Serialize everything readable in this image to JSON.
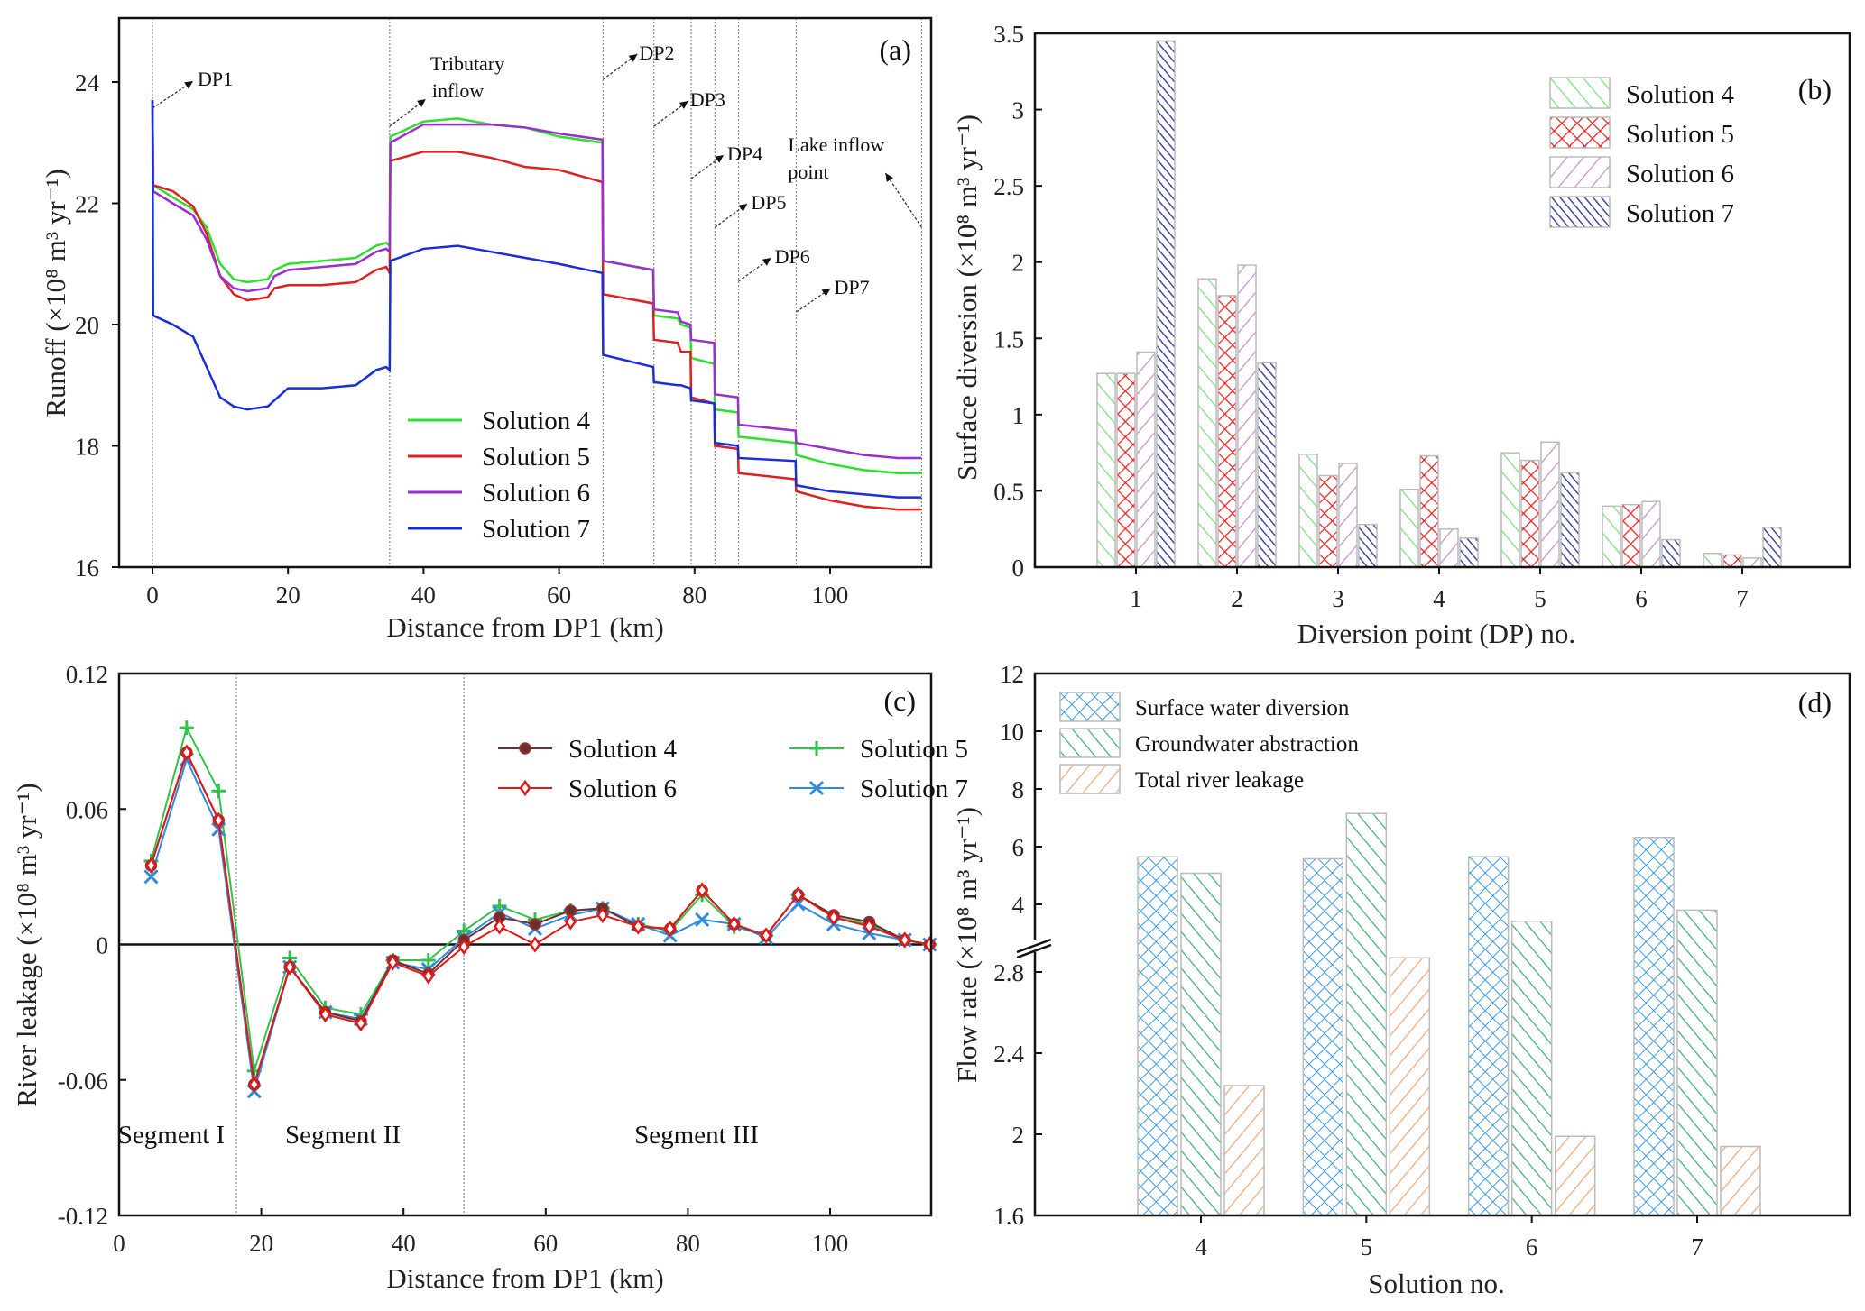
{
  "chart_data": [
    {
      "panel": "(a)",
      "type": "line",
      "title": "",
      "xlabel": "Distance from DP1 (km)",
      "ylabel": "Runoff (×10⁸ m³ yr⁻¹)",
      "xlim": [
        -5,
        114
      ],
      "ylim": [
        16,
        25
      ],
      "xticks": [
        0,
        20,
        40,
        60,
        80,
        100
      ],
      "yticks": [
        16,
        18,
        20,
        22,
        24
      ],
      "legend_position": "bottom-center",
      "annotations": [
        {
          "text": "DP1",
          "x": 0
        },
        {
          "text": "Tributary inflow",
          "x": 35
        },
        {
          "text": "DP2",
          "x": 66.5
        },
        {
          "text": "DP3",
          "x": 74
        },
        {
          "text": "DP4",
          "x": 79.5
        },
        {
          "text": "DP5",
          "x": 83
        },
        {
          "text": "DP6",
          "x": 86.5
        },
        {
          "text": "DP7",
          "x": 95
        },
        {
          "text": "Lake inflow point",
          "x": 113.5
        }
      ],
      "vlines": [
        0,
        35,
        66.5,
        74,
        79.5,
        83,
        86.5,
        95,
        113.5
      ],
      "series": [
        {
          "name": "Solution 4",
          "color": "#2ee02e",
          "x": [
            0,
            0.1,
            3,
            6,
            8,
            10,
            12,
            14,
            17,
            18,
            20,
            25,
            30,
            33,
            34.5,
            35,
            35.1,
            40,
            45,
            50,
            55,
            60,
            66.4,
            66.5,
            73.9,
            74,
            77.5,
            78,
            79.4,
            79.5,
            82.9,
            83,
            86.4,
            86.5,
            94.9,
            95,
            100,
            105,
            110,
            113.5
          ],
          "y": [
            23.7,
            22.3,
            22.1,
            21.9,
            21.6,
            21.0,
            20.75,
            20.7,
            20.75,
            20.9,
            21.0,
            21.05,
            21.1,
            21.3,
            21.35,
            21.3,
            23.1,
            23.35,
            23.4,
            23.3,
            23.25,
            23.1,
            23.0,
            21.05,
            20.9,
            20.15,
            20.1,
            20.0,
            19.95,
            19.45,
            19.35,
            18.6,
            18.55,
            18.15,
            18.05,
            17.85,
            17.7,
            17.6,
            17.55,
            17.55
          ]
        },
        {
          "name": "Solution 5",
          "color": "#e02020",
          "x": [
            0,
            0.1,
            3,
            6,
            8,
            10,
            12,
            14,
            17,
            18,
            20,
            25,
            30,
            33,
            34.5,
            35,
            35.1,
            40,
            45,
            50,
            55,
            60,
            66.4,
            66.5,
            73.9,
            74,
            77.5,
            78,
            79.4,
            79.5,
            82.9,
            83,
            86.4,
            86.5,
            94.9,
            95,
            100,
            105,
            110,
            113.5
          ],
          "y": [
            23.7,
            22.3,
            22.2,
            21.95,
            21.5,
            20.8,
            20.5,
            20.4,
            20.45,
            20.6,
            20.65,
            20.65,
            20.7,
            20.9,
            20.95,
            20.85,
            22.7,
            22.85,
            22.85,
            22.75,
            22.6,
            22.55,
            22.35,
            20.5,
            20.35,
            19.75,
            19.7,
            19.55,
            19.55,
            18.8,
            18.7,
            18.0,
            17.95,
            17.55,
            17.45,
            17.25,
            17.1,
            17.0,
            16.95,
            16.95
          ]
        },
        {
          "name": "Solution 6",
          "color": "#9a2ed0",
          "x": [
            0,
            0.1,
            3,
            6,
            8,
            10,
            12,
            14,
            17,
            18,
            20,
            25,
            30,
            33,
            34.5,
            35,
            35.1,
            40,
            45,
            50,
            55,
            60,
            66.4,
            66.5,
            73.9,
            74,
            77.5,
            78,
            79.4,
            79.5,
            82.9,
            83,
            86.4,
            86.5,
            94.9,
            95,
            100,
            105,
            110,
            113.5
          ],
          "y": [
            23.7,
            22.2,
            22.0,
            21.8,
            21.4,
            20.8,
            20.6,
            20.55,
            20.6,
            20.8,
            20.9,
            20.95,
            21.0,
            21.2,
            21.25,
            21.2,
            23.0,
            23.3,
            23.3,
            23.3,
            23.25,
            23.15,
            23.05,
            21.05,
            20.9,
            20.25,
            20.2,
            20.05,
            20.0,
            19.75,
            19.7,
            18.85,
            18.8,
            18.35,
            18.25,
            18.05,
            17.95,
            17.85,
            17.8,
            17.8
          ]
        },
        {
          "name": "Solution 7",
          "color": "#1a2ed8",
          "x": [
            0,
            0.1,
            3,
            6,
            8,
            10,
            12,
            14,
            17,
            18,
            20,
            25,
            30,
            33,
            34.5,
            35,
            35.1,
            40,
            45,
            50,
            55,
            60,
            66.4,
            66.5,
            73.9,
            74,
            77.5,
            78,
            79.4,
            79.5,
            82.9,
            83,
            86.4,
            86.5,
            94.9,
            95,
            100,
            105,
            110,
            113.5
          ],
          "y": [
            23.7,
            20.15,
            20.0,
            19.8,
            19.3,
            18.8,
            18.65,
            18.6,
            18.65,
            18.75,
            18.95,
            18.95,
            19.0,
            19.25,
            19.3,
            19.25,
            21.05,
            21.25,
            21.3,
            21.2,
            21.1,
            21.0,
            20.85,
            19.5,
            19.3,
            19.05,
            19.0,
            19.0,
            18.95,
            18.75,
            18.7,
            18.05,
            18.0,
            17.8,
            17.75,
            17.35,
            17.25,
            17.2,
            17.15,
            17.15
          ]
        }
      ]
    },
    {
      "panel": "(b)",
      "type": "bar",
      "xlabel": "Diversion point (DP) no.",
      "ylabel": "Surface diversion (×10⁸ m³ yr⁻¹)",
      "ylim": [
        0,
        3.5
      ],
      "yticks": [
        0,
        0.5,
        1,
        1.5,
        2,
        2.5,
        3,
        3.5
      ],
      "yticklabels": [
        "0",
        "0.5",
        "1",
        "1.5",
        "2",
        "2.5",
        "3",
        "3.5"
      ],
      "categories": [
        "1",
        "2",
        "3",
        "4",
        "5",
        "6",
        "7"
      ],
      "legend_position": "top-right",
      "series": [
        {
          "name": "Solution 4",
          "color": "#7be07b",
          "pattern": "diag-forward",
          "values": [
            1.27,
            1.89,
            0.74,
            0.51,
            0.75,
            0.4,
            0.09
          ]
        },
        {
          "name": "Solution 5",
          "color": "#f02020",
          "pattern": "crosshatch",
          "values": [
            1.27,
            1.78,
            0.6,
            0.73,
            0.7,
            0.41,
            0.08
          ]
        },
        {
          "name": "Solution 6",
          "color": "#c890c8",
          "pattern": "diag-back",
          "values": [
            1.41,
            1.98,
            0.68,
            0.25,
            0.82,
            0.43,
            0.06
          ]
        },
        {
          "name": "Solution 7",
          "color": "#404aa0",
          "pattern": "diag-dense",
          "values": [
            3.45,
            1.34,
            0.28,
            0.19,
            0.62,
            0.18,
            0.26
          ]
        }
      ]
    },
    {
      "panel": "(c)",
      "type": "line",
      "xlabel": "Distance from DP1 (km)",
      "ylabel": "River leakage (×10⁸ m³ yr⁻¹)",
      "xlim": [
        0,
        114
      ],
      "ylim": [
        -0.12,
        0.12
      ],
      "xticks": [
        0,
        20,
        40,
        60,
        80,
        100
      ],
      "yticks": [
        -0.12,
        -0.06,
        0,
        0.06,
        0.12
      ],
      "yticklabels": [
        "-0.12",
        "-0.06",
        "0",
        "0.06",
        "0.12"
      ],
      "vlines": [
        16.5,
        48.5
      ],
      "segments": [
        {
          "text": "Segment I",
          "x": 8
        },
        {
          "text": "Segment II",
          "x": 32
        },
        {
          "text": "Segment III",
          "x": 82
        }
      ],
      "legend_position": "top-right",
      "x": [
        4.5,
        9.5,
        14,
        19,
        24,
        29,
        34,
        38.5,
        43.5,
        48.5,
        53.5,
        58.5,
        63.5,
        68,
        73,
        77.5,
        82,
        86.5,
        91,
        95.5,
        100.5,
        105.5,
        110.5,
        114
      ],
      "series": [
        {
          "name": "Solution 4",
          "color": "#6a3030",
          "marker": "circle",
          "values": [
            0.035,
            0.085,
            0.055,
            -0.062,
            -0.01,
            -0.03,
            -0.034,
            -0.007,
            -0.013,
            0.002,
            0.012,
            0.009,
            0.015,
            0.016,
            0.008,
            0.007,
            0.024,
            0.009,
            0.004,
            0.022,
            0.013,
            0.01,
            0.002,
            0.0
          ]
        },
        {
          "name": "Solution 5",
          "color": "#33c24a",
          "marker": "plus",
          "values": [
            0.037,
            0.096,
            0.068,
            -0.056,
            -0.006,
            -0.028,
            -0.031,
            -0.007,
            -0.007,
            0.006,
            0.017,
            0.011,
            0.015,
            0.016,
            0.009,
            0.006,
            0.022,
            0.008,
            0.004,
            0.022,
            0.012,
            0.009,
            0.002,
            0.0
          ]
        },
        {
          "name": "Solution 6",
          "color": "#e01818",
          "marker": "diamond",
          "values": [
            0.035,
            0.085,
            0.055,
            -0.062,
            -0.01,
            -0.031,
            -0.035,
            -0.008,
            -0.014,
            -0.001,
            0.008,
            0.0,
            0.01,
            0.013,
            0.008,
            0.007,
            0.024,
            0.009,
            0.004,
            0.022,
            0.012,
            0.008,
            0.002,
            0.0
          ]
        },
        {
          "name": "Solution 7",
          "color": "#2f8ae0",
          "marker": "x",
          "values": [
            0.03,
            0.082,
            0.051,
            -0.065,
            -0.01,
            -0.03,
            -0.033,
            -0.008,
            -0.011,
            0.003,
            0.014,
            0.007,
            0.013,
            0.016,
            0.009,
            0.004,
            0.011,
            0.009,
            0.003,
            0.018,
            0.009,
            0.005,
            0.002,
            0.0
          ]
        }
      ]
    },
    {
      "panel": "(d)",
      "type": "bar",
      "xlabel": "Solution no.",
      "ylabel": "Flow rate (×10⁸ m³ yr⁻¹)",
      "categories": [
        "4",
        "5",
        "6",
        "7"
      ],
      "axis_break": {
        "lower": [
          1.6,
          3.2
        ],
        "upper": [
          3.2,
          12
        ]
      },
      "yticks_lower": [
        1.6,
        2,
        2.4,
        2.8
      ],
      "yticks_upper": [
        4,
        6,
        8,
        10,
        12
      ],
      "yticklabels_lower": [
        "1.6",
        "2",
        "2.4",
        "2.8"
      ],
      "yticklabels_upper": [
        "4",
        "6",
        "8",
        "10",
        "12"
      ],
      "legend_position": "top-left",
      "series": [
        {
          "name": "Surface water diversion",
          "color": "#3a9aea",
          "pattern": "crosshatch",
          "values": [
            5.65,
            5.58,
            5.65,
            6.32
          ]
        },
        {
          "name": "Groundwater abstraction",
          "color": "#3cb46a",
          "pattern": "diag-forward",
          "values": [
            5.08,
            7.15,
            3.05,
            3.8
          ]
        },
        {
          "name": "Total river leakage",
          "color": "#f5a878",
          "pattern": "diag-back",
          "values": [
            2.24,
            2.87,
            1.99,
            1.94
          ]
        }
      ]
    }
  ]
}
